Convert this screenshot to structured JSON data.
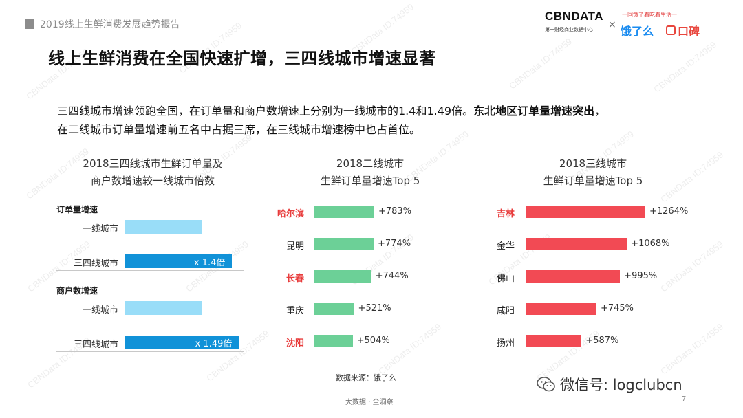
{
  "header": {
    "report_title": "2019线上生鲜消费发展趋势报告",
    "brand_name": "CBNDATA",
    "brand_sub": "第一财经商业数据中心",
    "brand_slogan": "一同饿了着吃着生活一",
    "partner1": "饿了么",
    "partner2": "口碑",
    "times": "×"
  },
  "headline": "线上生鲜消费在全国快速扩增，三四线城市增速显著",
  "summary": {
    "line1_normal": "三四线城市增速领跑全国，在订单量和商户数增速上分别为一线城市的1.4和1.49倍。",
    "line1_bold": "东北地区订单量增速突出",
    "line1_tail": "，",
    "line2": "在二线城市订单量增速前五名中占据三席，在三线城市增速榜中也占首位。"
  },
  "watermark": "CBNData ID:74959",
  "chart_data": [
    {
      "type": "bar",
      "title": "2018三四线城市生鲜订单量及商户数增速较一线城市倍数",
      "title_lines": [
        "2018三四线城市生鲜订单量及",
        "商户数增速较一线城市倍数"
      ],
      "groups": [
        {
          "heading": "订单量增速",
          "categories": [
            "一线城市",
            "三四线城市"
          ],
          "values": [
            1.0,
            1.4
          ],
          "labels": [
            "",
            "x 1.4倍"
          ]
        },
        {
          "heading": "商户数增速",
          "categories": [
            "一线城市",
            "三四线城市"
          ],
          "values": [
            1.0,
            1.49
          ],
          "labels": [
            "",
            "x 1.49倍"
          ]
        }
      ],
      "colors": {
        "baseline": "#99ddf8",
        "highlight": "#1192d8"
      }
    },
    {
      "type": "bar",
      "title": "2018二线城市生鲜订单量增速Top 5",
      "title_lines": [
        "2018二线城市",
        "生鲜订单量增速Top 5"
      ],
      "categories": [
        "哈尔滨",
        "昆明",
        "长春",
        "重庆",
        "沈阳"
      ],
      "values": [
        783,
        774,
        744,
        521,
        504
      ],
      "labels": [
        "+783%",
        "+774%",
        "+744%",
        "+521%",
        "+504%"
      ],
      "highlighted": [
        true,
        false,
        true,
        false,
        true
      ],
      "color": "#6cd097",
      "highlight_text_color": "#e83c3c"
    },
    {
      "type": "bar",
      "title": "2018三线城市生鲜订单量增速Top 5",
      "title_lines": [
        "2018三线城市",
        "生鲜订单量增速Top 5"
      ],
      "categories": [
        "吉林",
        "金华",
        "佛山",
        "咸阳",
        "扬州"
      ],
      "values": [
        1264,
        1068,
        995,
        745,
        587
      ],
      "labels": [
        "+1264%",
        "+1068%",
        "+995%",
        "+745%",
        "+587%"
      ],
      "highlighted": [
        true,
        false,
        false,
        false,
        false
      ],
      "color": "#f24a54",
      "highlight_text_color": "#e83c3c"
    }
  ],
  "source": "数据来源：饿了么",
  "footer": "大数据 · 全洞察",
  "page_number": "7",
  "wechat": "微信号: logclubcn"
}
